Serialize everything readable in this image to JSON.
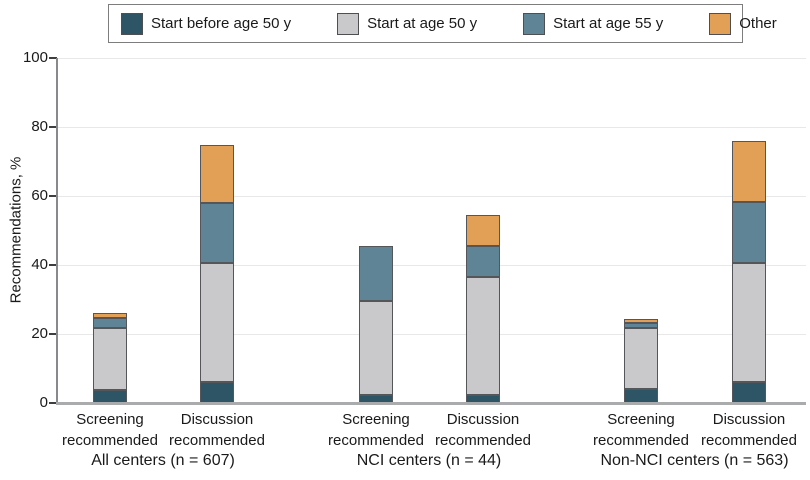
{
  "legend": {
    "items": [
      {
        "label": "Start before age 50 y",
        "color": "#2D5565"
      },
      {
        "label": "Start at age 50 y",
        "color": "#C9C9CB"
      },
      {
        "label": "Start at age 55 y",
        "color": "#5E8495"
      },
      {
        "label": "Other",
        "color": "#E2A057"
      }
    ]
  },
  "chart_data": {
    "type": "bar",
    "stacked": true,
    "title": "",
    "ylabel": "Recommendations, %",
    "ylim": [
      0,
      100
    ],
    "yticks": [
      0,
      20,
      40,
      60,
      80,
      100
    ],
    "grid": true,
    "legend_position": "top",
    "series_names": [
      "Start before age 50 y",
      "Start at age 50 y",
      "Start at age 55 y",
      "Other"
    ],
    "series_colors": [
      "#2D5565",
      "#C9C9CB",
      "#5E8495",
      "#E2A057"
    ],
    "groups": [
      {
        "label": "All centers (n = 607)",
        "bars": [
          {
            "label": "Screening recommended",
            "values": [
              3.8,
              18.0,
              2.9,
              1.4
            ]
          },
          {
            "label": "Discussion recommended",
            "values": [
              6.1,
              34.5,
              17.5,
              16.7
            ]
          }
        ]
      },
      {
        "label": "NCI centers (n = 44)",
        "bars": [
          {
            "label": "Screening recommended",
            "values": [
              2.3,
              27.3,
              15.9,
              0
            ]
          },
          {
            "label": "Discussion recommended",
            "values": [
              2.3,
              34.1,
              9.1,
              9.1
            ]
          }
        ]
      },
      {
        "label": "Non-NCI centers (n = 563)",
        "bars": [
          {
            "label": "Screening recommended",
            "values": [
              4.0,
              17.8,
              1.4,
              1.2
            ]
          },
          {
            "label": "Discussion recommended",
            "values": [
              6.2,
              34.3,
              17.9,
              17.6
            ]
          }
        ]
      }
    ]
  }
}
